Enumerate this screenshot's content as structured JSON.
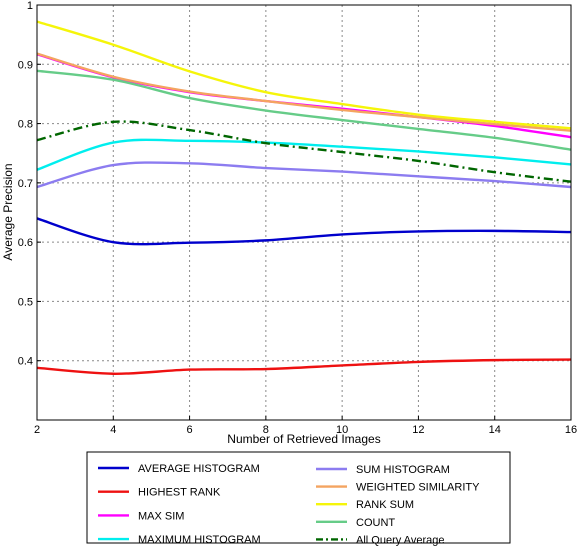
{
  "chart_data": {
    "type": "line",
    "title": "",
    "xlabel": "Number of Retrieved Images",
    "ylabel": "Average Precision",
    "xlim": [
      2,
      16
    ],
    "ylim": [
      0.3,
      1
    ],
    "x_ticks": [
      "2",
      "4",
      "6",
      "8",
      "10",
      "12",
      "14",
      "16"
    ],
    "y_ticks": [
      "0.4",
      "0.5",
      "0.6",
      "0.7",
      "0.8",
      "0.9",
      "1"
    ],
    "grid": true,
    "legend_placement": "bottom-outside",
    "x": [
      2,
      4,
      6,
      8,
      10,
      12,
      14,
      16
    ],
    "series": [
      {
        "name": "AVERAGE HISTOGRAM",
        "color": "#0000cc",
        "dash": "solid",
        "values": [
          0.64,
          0.6,
          0.599,
          0.603,
          0.613,
          0.618,
          0.619,
          0.617
        ]
      },
      {
        "name": "HIGHEST RANK",
        "color": "#ee1111",
        "dash": "solid",
        "values": [
          0.388,
          0.378,
          0.385,
          0.386,
          0.392,
          0.398,
          0.401,
          0.402
        ]
      },
      {
        "name": "MAX SIM",
        "color": "#ff00ff",
        "dash": "solid",
        "values": [
          0.917,
          0.878,
          0.853,
          0.838,
          0.825,
          0.811,
          0.796,
          0.777
        ]
      },
      {
        "name": "MAXIMUM HISTOGRAM",
        "color": "#00eeee",
        "dash": "solid",
        "values": [
          0.722,
          0.768,
          0.771,
          0.768,
          0.761,
          0.753,
          0.743,
          0.731
        ]
      },
      {
        "name": "SUM HISTOGRAM",
        "color": "#8c7cf0",
        "dash": "solid",
        "values": [
          0.693,
          0.73,
          0.733,
          0.725,
          0.719,
          0.711,
          0.703,
          0.693
        ]
      },
      {
        "name": "WEIGHTED SIMILARITY",
        "color": "#f4a460",
        "dash": "solid",
        "values": [
          0.918,
          0.879,
          0.854,
          0.838,
          0.823,
          0.811,
          0.799,
          0.788
        ]
      },
      {
        "name": "RANK SUM",
        "color": "#f5f50a",
        "dash": "solid",
        "values": [
          0.972,
          0.933,
          0.888,
          0.853,
          0.833,
          0.815,
          0.803,
          0.792
        ]
      },
      {
        "name": "COUNT",
        "color": "#66cc88",
        "dash": "solid",
        "values": [
          0.889,
          0.874,
          0.843,
          0.822,
          0.806,
          0.791,
          0.776,
          0.756
        ]
      },
      {
        "name": "All Query Average",
        "color": "#006600",
        "dash": "dashdot",
        "values": [
          0.772,
          0.803,
          0.789,
          0.767,
          0.752,
          0.737,
          0.718,
          0.702
        ]
      }
    ],
    "legend_columns": [
      [
        "AVERAGE HISTOGRAM",
        "HIGHEST RANK",
        "MAX SIM",
        "MAXIMUM HISTOGRAM"
      ],
      [
        "SUM HISTOGRAM",
        "WEIGHTED SIMILARITY",
        "RANK SUM",
        "COUNT",
        "All Query Average"
      ]
    ]
  }
}
